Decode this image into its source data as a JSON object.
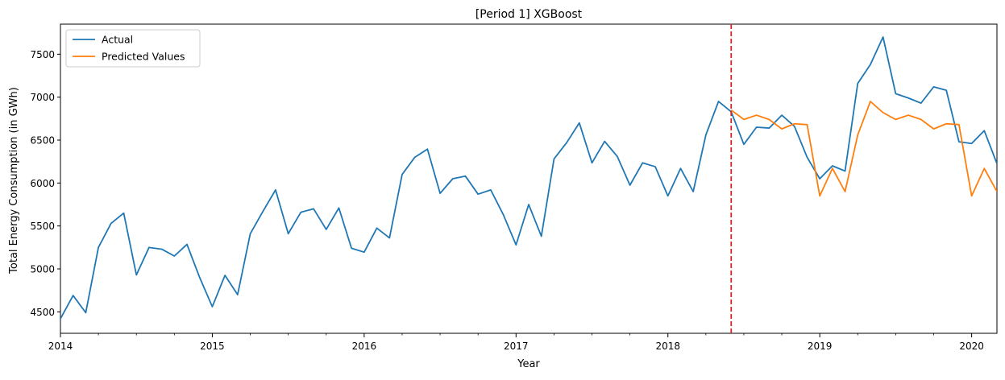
{
  "chart_data": {
    "type": "line",
    "title": "[Period 1] XGBoost",
    "xlabel": "Year",
    "ylabel": "Total Energy Consumption (in GWh)",
    "x_range": [
      "2014-01",
      "2020-03"
    ],
    "ylim": [
      4250,
      7850
    ],
    "x_ticks": [
      "2014",
      "2015",
      "2016",
      "2017",
      "2018",
      "2019",
      "2020"
    ],
    "y_ticks": [
      4500,
      5000,
      5500,
      6000,
      6500,
      7000,
      7500
    ],
    "grid": false,
    "legend_position": "upper-left",
    "split_marker": {
      "date": "2018-06",
      "color": "#d62728",
      "style": "dashed"
    },
    "series": [
      {
        "name": "Actual",
        "color": "#1f77b4",
        "x": [
          "2014-01",
          "2014-02",
          "2014-03",
          "2014-04",
          "2014-05",
          "2014-06",
          "2014-07",
          "2014-08",
          "2014-09",
          "2014-10",
          "2014-11",
          "2014-12",
          "2015-01",
          "2015-02",
          "2015-03",
          "2015-04",
          "2015-05",
          "2015-06",
          "2015-07",
          "2015-08",
          "2015-09",
          "2015-10",
          "2015-11",
          "2015-12",
          "2016-01",
          "2016-02",
          "2016-03",
          "2016-04",
          "2016-05",
          "2016-06",
          "2016-07",
          "2016-08",
          "2016-09",
          "2016-10",
          "2016-11",
          "2016-12",
          "2017-01",
          "2017-02",
          "2017-03",
          "2017-04",
          "2017-05",
          "2017-06",
          "2017-07",
          "2017-08",
          "2017-09",
          "2017-10",
          "2017-11",
          "2017-12",
          "2018-01",
          "2018-02",
          "2018-03",
          "2018-04",
          "2018-05",
          "2018-06",
          "2018-07",
          "2018-08",
          "2018-09",
          "2018-10",
          "2018-11",
          "2018-12",
          "2019-01",
          "2019-02",
          "2019-03",
          "2019-04",
          "2019-05",
          "2019-06",
          "2019-07",
          "2019-08",
          "2019-09",
          "2019-10",
          "2019-11",
          "2019-12",
          "2020-01",
          "2020-02",
          "2020-03"
        ],
        "values": [
          4420,
          4690,
          4490,
          5250,
          5530,
          5650,
          4930,
          5250,
          5230,
          5150,
          5285,
          4900,
          4560,
          4925,
          4700,
          5410,
          5670,
          5920,
          5410,
          5660,
          5700,
          5460,
          5710,
          5240,
          5195,
          5475,
          5360,
          6100,
          6300,
          6395,
          5880,
          6050,
          6080,
          5870,
          5920,
          5630,
          5280,
          5750,
          5380,
          6280,
          6470,
          6700,
          6235,
          6485,
          6310,
          5975,
          6235,
          6190,
          5850,
          6170,
          5900,
          6560,
          6950,
          6830,
          6450,
          6650,
          6640,
          6790,
          6660,
          6300,
          6050,
          6200,
          6140,
          7160,
          7380,
          7700,
          7040,
          6990,
          6930,
          7120,
          7080,
          6480,
          6460,
          6610,
          6225
        ]
      },
      {
        "name": "Predicted Values",
        "color": "#ff7f0e",
        "x": [
          "2018-06",
          "2018-07",
          "2018-08",
          "2018-09",
          "2018-10",
          "2018-11",
          "2018-12",
          "2019-01",
          "2019-02",
          "2019-03",
          "2019-04",
          "2019-05",
          "2019-06",
          "2019-07",
          "2019-08",
          "2019-09",
          "2019-10",
          "2019-11",
          "2019-12",
          "2020-01",
          "2020-02",
          "2020-03"
        ],
        "values": [
          6850,
          6740,
          6790,
          6740,
          6630,
          6690,
          6680,
          5850,
          6170,
          5900,
          6560,
          6950,
          6820,
          6740,
          6790,
          6740,
          6630,
          6690,
          6680,
          5850,
          6170,
          5900
        ]
      }
    ]
  }
}
